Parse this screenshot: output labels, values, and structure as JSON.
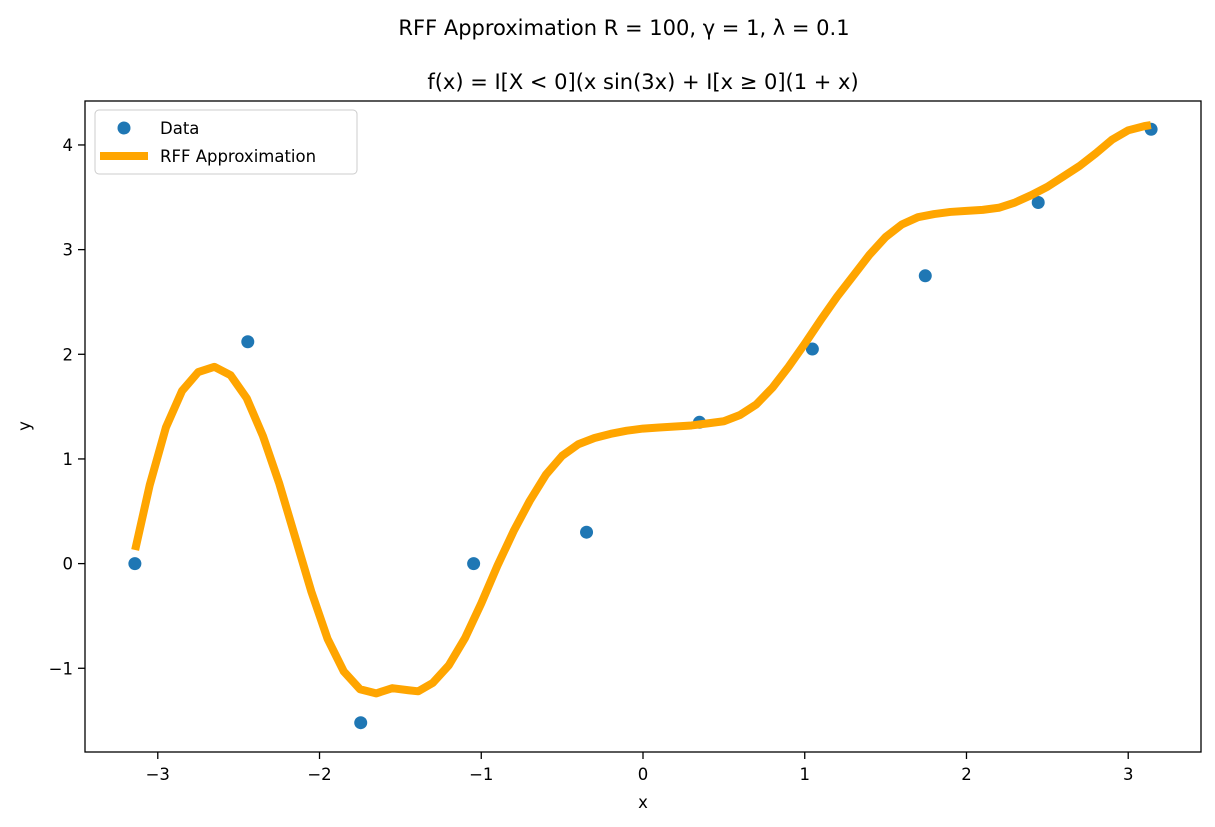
{
  "chart_data": {
    "type": "scatter",
    "suptitle": "RFF Approximation R = 100, γ = 1, λ = 0.1",
    "title": "f(x) = I[X < 0](x sin(3x) + I[x ≥ 0](1 + x)",
    "xlabel": "x",
    "ylabel": "y",
    "xlim": [
      -3.45,
      3.45
    ],
    "ylim": [
      -1.8,
      4.42
    ],
    "xticks": [
      -3,
      -2,
      -1,
      0,
      1,
      2,
      3
    ],
    "xtick_labels": [
      "−3",
      "−2",
      "−1",
      "0",
      "1",
      "2",
      "3"
    ],
    "yticks": [
      -1,
      0,
      1,
      2,
      3,
      4
    ],
    "ytick_labels": [
      "−1",
      "0",
      "1",
      "2",
      "3",
      "4"
    ],
    "grid": false,
    "legend": "top-left",
    "series": [
      {
        "name": "Data",
        "kind": "scatter",
        "color": "#1f77b4",
        "x": [
          -3.1416,
          -2.4435,
          -1.7453,
          -1.0472,
          -0.3491,
          0.3491,
          1.0472,
          1.7453,
          2.4435,
          3.1416
        ],
        "y": [
          0.0,
          2.12,
          -1.52,
          0.0,
          0.3,
          1.35,
          2.05,
          2.75,
          3.45,
          4.15
        ]
      },
      {
        "name": "RFF Approximation",
        "kind": "line",
        "color": "#ffa500",
        "x": [
          -3.14,
          -3.05,
          -2.95,
          -2.85,
          -2.75,
          -2.65,
          -2.55,
          -2.45,
          -2.35,
          -2.25,
          -2.15,
          -2.05,
          -1.95,
          -1.85,
          -1.75,
          -1.65,
          -1.55,
          -1.45,
          -1.39,
          -1.3,
          -1.2,
          -1.1,
          -1.0,
          -0.9,
          -0.8,
          -0.7,
          -0.6,
          -0.5,
          -0.4,
          -0.3,
          -0.2,
          -0.1,
          0.0,
          0.1,
          0.2,
          0.3,
          0.4,
          0.5,
          0.6,
          0.7,
          0.8,
          0.9,
          1.0,
          1.1,
          1.2,
          1.3,
          1.4,
          1.5,
          1.6,
          1.7,
          1.8,
          1.9,
          2.0,
          2.1,
          2.2,
          2.3,
          2.4,
          2.5,
          2.6,
          2.7,
          2.8,
          2.9,
          3.0,
          3.1,
          3.14
        ],
        "y": [
          0.13,
          0.75,
          1.3,
          1.65,
          1.83,
          1.88,
          1.8,
          1.58,
          1.22,
          0.77,
          0.25,
          -0.27,
          -0.72,
          -1.03,
          -1.2,
          -1.24,
          -1.19,
          -1.21,
          -1.22,
          -1.14,
          -0.97,
          -0.71,
          -0.38,
          -0.02,
          0.31,
          0.6,
          0.85,
          1.03,
          1.14,
          1.2,
          1.24,
          1.27,
          1.29,
          1.3,
          1.31,
          1.32,
          1.34,
          1.36,
          1.42,
          1.52,
          1.68,
          1.88,
          2.1,
          2.33,
          2.55,
          2.75,
          2.95,
          3.12,
          3.24,
          3.31,
          3.34,
          3.36,
          3.37,
          3.38,
          3.4,
          3.45,
          3.52,
          3.6,
          3.7,
          3.8,
          3.92,
          4.05,
          4.14,
          4.18,
          4.19
        ]
      }
    ]
  }
}
